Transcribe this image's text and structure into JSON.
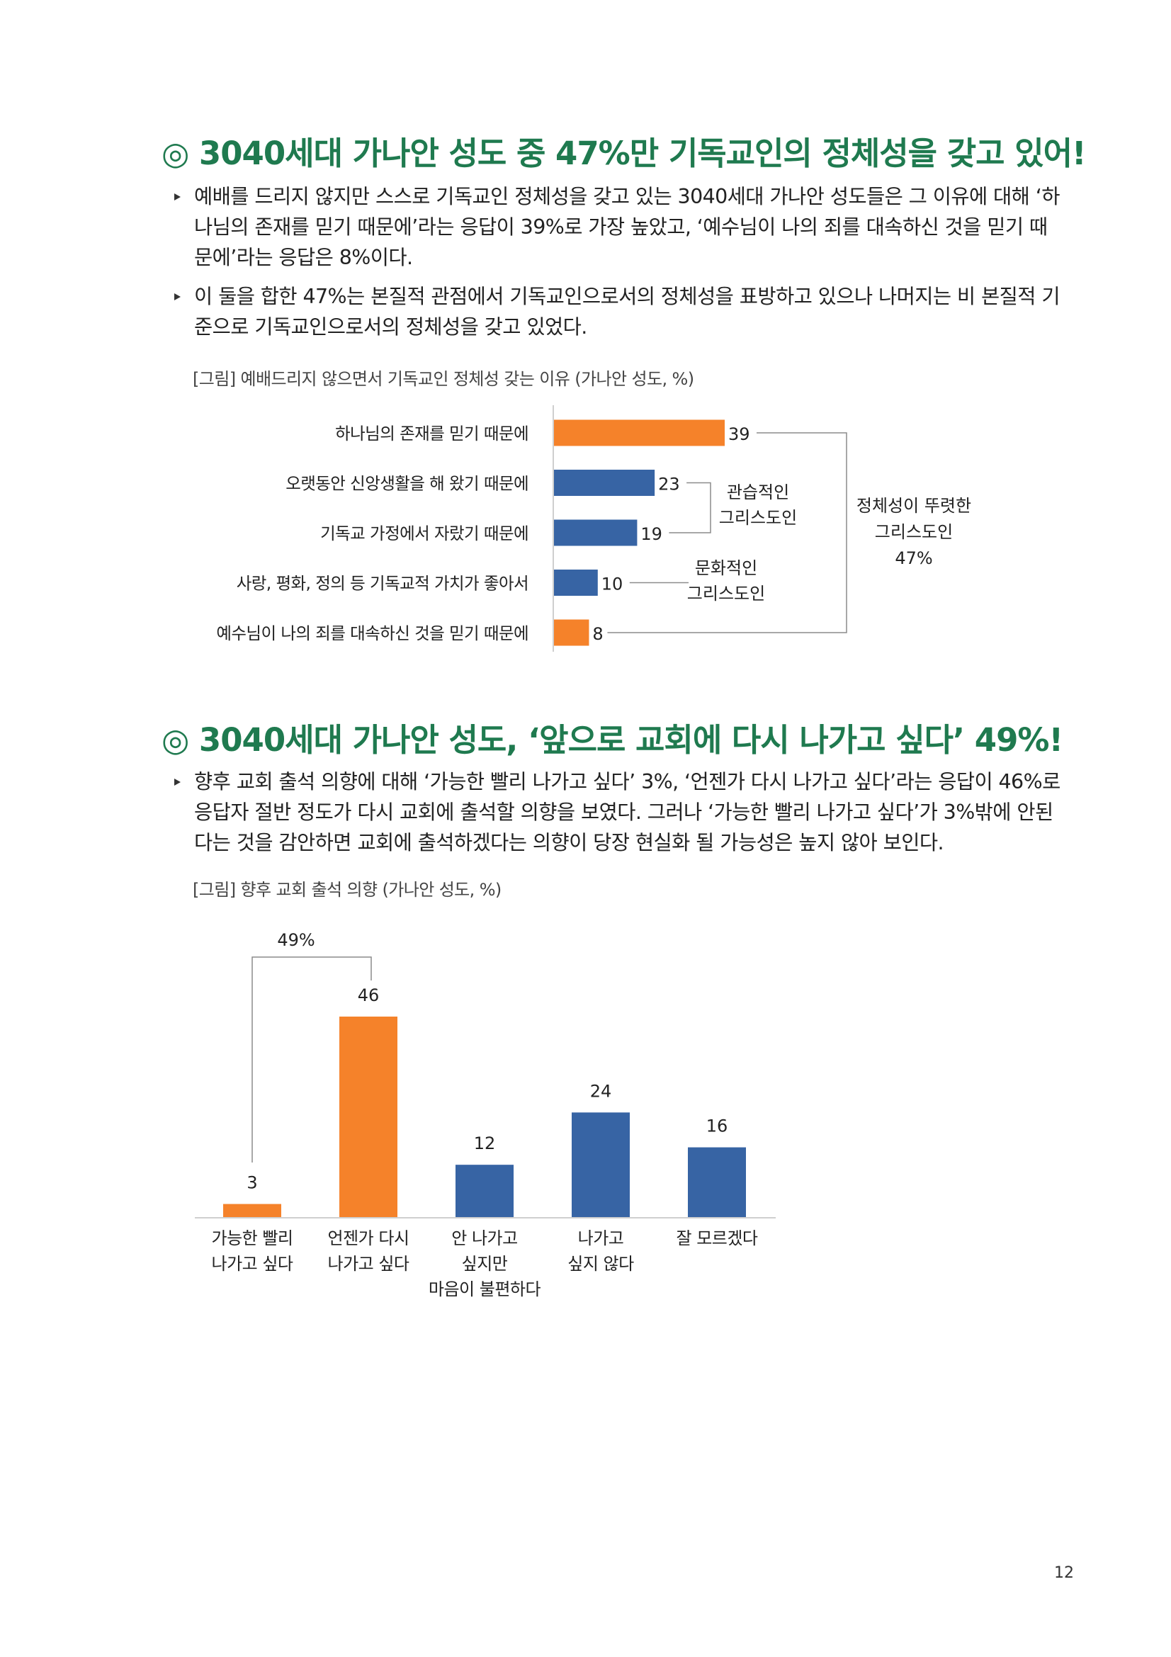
{
  "colors": {
    "accent_green": "#1f7a4f",
    "orange": "#f5822a",
    "blue": "#3764a4",
    "axis": "#bfbfbf",
    "bracket": "#8c8c8c"
  },
  "section1": {
    "title": "◎ 3040세대 가나안 성도 중 47%만 기독교인의 정체성을 갖고 있어!",
    "bullets": [
      {
        "icon": "triangle-bullet-icon",
        "lines": [
          "예배를 드리지 않지만 스스로 기독교인 정체성을 갖고 있는 3040세대 가나안 성도들은 그 이유에 대해 ‘하",
          "나님의 존재를 믿기 때문에’라는 응답이 39%로 가장 높았고, ‘예수님이 나의 죄를 대속하신 것을 믿기 때",
          "문에’라는 응답은 8%이다."
        ]
      },
      {
        "icon": "triangle-bullet-icon",
        "lines": [
          "이 둘을 합한 47%는 본질적 관점에서 기독교인으로서의 정체성을 표방하고 있으나 나머지는 비 본질적 기",
          "준으로 기독교인으로서의 정체성을 갖고 있었다."
        ]
      }
    ],
    "caption": "[그림] 예배드리지 않으면서 기독교인 정체성 갖는 이유 (가나안 성도, %)"
  },
  "section2": {
    "title": "◎ 3040세대 가나안 성도, ‘앞으로 교회에 다시 나가고 싶다’ 49%!",
    "bullets": [
      {
        "icon": "triangle-bullet-icon",
        "lines": [
          "향후 교회 출석 의향에 대해 ‘가능한 빨리 나가고 싶다’ 3%, ‘언젠가 다시 나가고 싶다’라는 응답이 46%로",
          "응답자 절반 정도가 다시 교회에 출석할 의향을 보였다. 그러나 ‘가능한 빨리 나가고 싶다’가 3%밖에 안된",
          "다는 것을 감안하면 교회에 출석하겠다는 의향이 당장 현실화 될 가능성은 높지 않아 보인다."
        ]
      }
    ],
    "caption": "[그림] 향후 교회 출석 의향 (가나안 성도, %)"
  },
  "page_number": "12",
  "chart_data": [
    {
      "type": "bar",
      "orientation": "horizontal",
      "categories": [
        "하나님의 존재를 믿기 때문에",
        "오랫동안 신앙생활을 해 왔기 때문에",
        "기독교 가정에서 자랐기 때문에",
        "사랑, 평화, 정의 등 기독교적 가치가 좋아서",
        "예수님이 나의 죄를 대속하신 것을 믿기 때문에"
      ],
      "values": [
        39,
        23,
        19,
        10,
        8
      ],
      "bar_colors": [
        "#f5822a",
        "#3764a4",
        "#3764a4",
        "#3764a4",
        "#f5822a"
      ],
      "xlim": [
        0,
        39
      ],
      "grid": false,
      "annotations": [
        {
          "text_lines": [
            "관습적인",
            "그리스도인"
          ],
          "applies_to": [
            1,
            2
          ]
        },
        {
          "text_lines": [
            "문화적인",
            "그리스도인"
          ],
          "applies_to": [
            3
          ]
        },
        {
          "text_lines": [
            "정체성이 뚜렷한",
            "그리스도인",
            "47%"
          ],
          "applies_to": [
            0,
            4
          ]
        }
      ]
    },
    {
      "type": "bar",
      "orientation": "vertical",
      "categories": [
        [
          "가능한 빨리",
          "나가고 싶다"
        ],
        [
          "언젠가 다시",
          "나가고 싶다"
        ],
        [
          "안 나가고",
          "싶지만",
          "마음이 불편하다"
        ],
        [
          "나가고",
          "싶지 않다"
        ],
        [
          "잘 모르겠다"
        ]
      ],
      "values": [
        3,
        46,
        12,
        24,
        16
      ],
      "bar_colors": [
        "#f5822a",
        "#f5822a",
        "#3764a4",
        "#3764a4",
        "#3764a4"
      ],
      "ylim": [
        0,
        46
      ],
      "grid": false,
      "annotations": [
        {
          "text": "49%",
          "applies_to": [
            0,
            1
          ]
        }
      ]
    }
  ]
}
